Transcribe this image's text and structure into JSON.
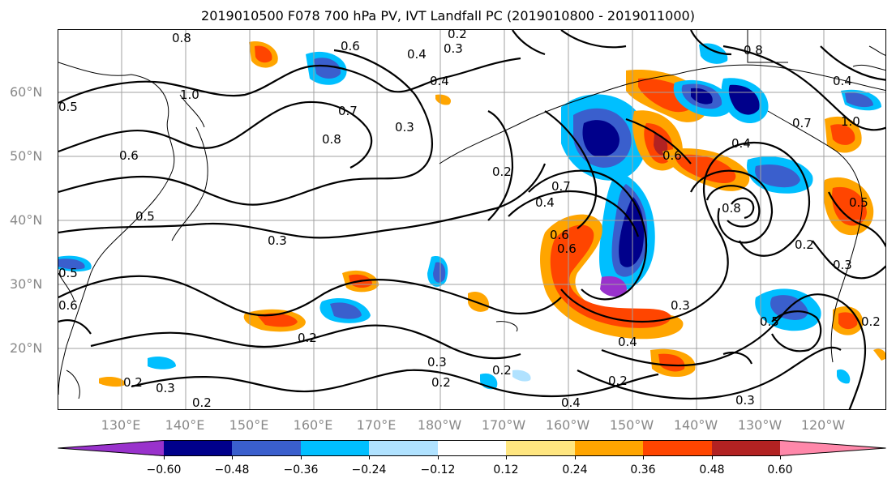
{
  "title": "2019010500 F078 700 hPa PV, IVT Landfall PC (2019010800 - 2019011000)",
  "lat_labels": [
    "60°N",
    "50°N",
    "40°N",
    "30°N",
    "20°N"
  ],
  "lon_labels": [
    "130°E",
    "140°E",
    "150°E",
    "160°E",
    "170°E",
    "180°W",
    "170°W",
    "160°W",
    "150°W",
    "140°W",
    "130°W",
    "120°W"
  ],
  "colorbar": {
    "tick_labels": [
      "−0.60",
      "−0.48",
      "−0.36",
      "−0.24",
      "−0.12",
      "0.12",
      "0.24",
      "0.36",
      "0.48",
      "0.60"
    ],
    "colors": [
      "#9932cc",
      "#00008b",
      "#3a5fcd",
      "#00bfff",
      "#b0e2ff",
      "#ffffff",
      "#ffe680",
      "#ffa500",
      "#ff4500",
      "#b22222",
      "#ff88aa"
    ]
  },
  "contour_labels": [
    "0.8",
    "0.6",
    "0.4",
    "0.3",
    "0.2",
    "0.4",
    "1.0",
    "0.5",
    "0.7",
    "0.8",
    "0.2",
    "0.3",
    "0.5",
    "0.6",
    "0.3",
    "0.2",
    "0.2",
    "0.3",
    "0.2",
    "0.3",
    "0.2",
    "0.4",
    "0.6",
    "0.7",
    "0.6",
    "0.2",
    "0.3",
    "0.4",
    "0.2",
    "0.6",
    "0.4",
    "0.8",
    "0.5",
    "0.3",
    "0.2",
    "0.4",
    "0.5",
    "0.2",
    "0.3",
    "1.0",
    "0.7",
    "0.8",
    "0.4",
    "0.5",
    "0.6"
  ]
}
